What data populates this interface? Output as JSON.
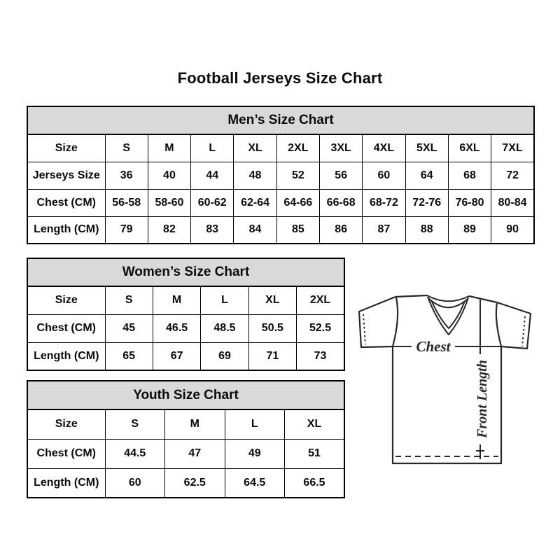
{
  "page": {
    "title": "Football Jerseys Size Chart",
    "background_color": "#ffffff",
    "table_header_bg": "#d9d9d9",
    "border_color": "#000000",
    "text_color": "#0b0b0b"
  },
  "chart_data": [
    {
      "id": "mens",
      "type": "table",
      "title": "Men’s Size Chart",
      "rows": [
        {
          "label": "Size",
          "values": [
            "S",
            "M",
            "L",
            "XL",
            "2XL",
            "3XL",
            "4XL",
            "5XL",
            "6XL",
            "7XL"
          ]
        },
        {
          "label": "Jerseys Size",
          "values": [
            "36",
            "40",
            "44",
            "48",
            "52",
            "56",
            "60",
            "64",
            "68",
            "72"
          ]
        },
        {
          "label": "Chest (CM)",
          "values": [
            "56-58",
            "58-60",
            "60-62",
            "62-64",
            "64-66",
            "66-68",
            "68-72",
            "72-76",
            "76-80",
            "80-84"
          ]
        },
        {
          "label": "Length (CM)",
          "values": [
            "79",
            "82",
            "83",
            "84",
            "85",
            "86",
            "87",
            "88",
            "89",
            "90"
          ]
        }
      ]
    },
    {
      "id": "womens",
      "type": "table",
      "title": "Women’s Size Chart",
      "rows": [
        {
          "label": "Size",
          "values": [
            "S",
            "M",
            "L",
            "XL",
            "2XL"
          ]
        },
        {
          "label": "Chest (CM)",
          "values": [
            "45",
            "46.5",
            "48.5",
            "50.5",
            "52.5"
          ]
        },
        {
          "label": "Length (CM)",
          "values": [
            "65",
            "67",
            "69",
            "71",
            "73"
          ]
        }
      ]
    },
    {
      "id": "youth",
      "type": "table",
      "title": "Youth Size Chart",
      "rows": [
        {
          "label": "Size",
          "values": [
            "S",
            "M",
            "L",
            "XL"
          ]
        },
        {
          "label": "Chest (CM)",
          "values": [
            "44.5",
            "47",
            "49",
            "51"
          ]
        },
        {
          "label": "Length (CM)",
          "values": [
            "60",
            "62.5",
            "64.5",
            "66.5"
          ]
        }
      ]
    }
  ],
  "diagram": {
    "chest_label": "Chest",
    "front_length_label": "Front Length"
  }
}
